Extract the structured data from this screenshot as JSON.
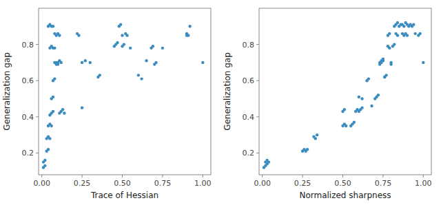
{
  "chart_data": [
    {
      "type": "scatter",
      "x_label": "Trace of Hessian",
      "y_label": "Generalization gap",
      "xlim": [
        -0.02,
        1.05
      ],
      "ylim": [
        0.08,
        1.0
      ],
      "xticks": [
        {
          "value": 0.0,
          "label": "0.00"
        },
        0.25,
        {
          "value": 0.5,
          "label": "0.50"
        },
        0.75,
        {
          "value": 1.0,
          "label": "1.00"
        }
      ],
      "yticks": [
        0.2,
        0.4,
        0.6,
        0.8
      ],
      "color": "#3a8bbf",
      "x": [
        0.01,
        0.02,
        0.01,
        0.02,
        0.03,
        0.04,
        0.03,
        0.04,
        0.05,
        0.04,
        0.05,
        0.06,
        0.05,
        0.06,
        0.07,
        0.06,
        0.07,
        0.07,
        0.08,
        0.08,
        0.09,
        0.09,
        0.1,
        0.1,
        0.11,
        0.12,
        0.11,
        0.12,
        0.13,
        0.14,
        0.04,
        0.05,
        0.06,
        0.07,
        0.08,
        0.09,
        0.1,
        0.11,
        0.05,
        0.06,
        0.07,
        0.08,
        0.25,
        0.27,
        0.3,
        0.25,
        0.35,
        0.36,
        0.45,
        0.46,
        0.47,
        0.5,
        0.5,
        0.51,
        0.55,
        0.6,
        0.62,
        0.65,
        0.7,
        0.71,
        0.75,
        0.9,
        0.92,
        1.0,
        0.22,
        0.23,
        0.48,
        0.49,
        0.52,
        0.53,
        0.68,
        0.69,
        0.9,
        0.91
      ],
      "y": [
        0.12,
        0.13,
        0.15,
        0.16,
        0.21,
        0.22,
        0.28,
        0.29,
        0.28,
        0.35,
        0.36,
        0.35,
        0.41,
        0.42,
        0.43,
        0.5,
        0.51,
        0.6,
        0.61,
        0.7,
        0.69,
        0.7,
        0.69,
        0.7,
        0.71,
        0.7,
        0.42,
        0.43,
        0.44,
        0.42,
        0.9,
        0.91,
        0.9,
        0.9,
        0.86,
        0.85,
        0.86,
        0.85,
        0.78,
        0.79,
        0.78,
        0.78,
        0.7,
        0.71,
        0.7,
        0.45,
        0.62,
        0.63,
        0.79,
        0.8,
        0.81,
        0.85,
        0.79,
        0.8,
        0.78,
        0.63,
        0.61,
        0.71,
        0.69,
        0.7,
        0.78,
        0.85,
        0.9,
        0.7,
        0.86,
        0.85,
        0.9,
        0.91,
        0.86,
        0.85,
        0.78,
        0.79,
        0.86,
        0.85
      ]
    },
    {
      "type": "scatter",
      "x_label": "Normalized sharpness",
      "y_label": "Generalization gap",
      "xlim": [
        -0.02,
        1.05
      ],
      "ylim": [
        0.08,
        1.0
      ],
      "xticks": [
        {
          "value": 0.0,
          "label": "0.00"
        },
        0.25,
        {
          "value": 0.5,
          "label": "0.50"
        },
        0.75,
        {
          "value": 1.0,
          "label": "1.00"
        }
      ],
      "yticks": [
        0.2,
        0.4,
        0.6,
        0.8
      ],
      "color": "#3a8bbf",
      "x": [
        0.01,
        0.02,
        0.02,
        0.03,
        0.03,
        0.04,
        0.25,
        0.26,
        0.27,
        0.28,
        0.32,
        0.33,
        0.34,
        0.5,
        0.51,
        0.52,
        0.5,
        0.51,
        0.55,
        0.56,
        0.57,
        0.58,
        0.59,
        0.6,
        0.61,
        0.62,
        0.6,
        0.62,
        0.65,
        0.66,
        0.68,
        0.7,
        0.71,
        0.72,
        0.73,
        0.74,
        0.75,
        0.76,
        0.73,
        0.74,
        0.75,
        0.76,
        0.77,
        0.78,
        0.79,
        0.8,
        0.78,
        0.79,
        0.8,
        0.81,
        0.82,
        0.83,
        0.84,
        0.82,
        0.83,
        0.84,
        0.85,
        0.86,
        0.87,
        0.88,
        0.89,
        0.9,
        0.87,
        0.88,
        0.89,
        0.9,
        0.91,
        0.92,
        0.93,
        0.94,
        0.95,
        0.97,
        0.98,
        1.0
      ],
      "y": [
        0.12,
        0.13,
        0.15,
        0.14,
        0.16,
        0.15,
        0.21,
        0.22,
        0.21,
        0.22,
        0.29,
        0.28,
        0.3,
        0.35,
        0.36,
        0.35,
        0.43,
        0.44,
        0.35,
        0.36,
        0.37,
        0.43,
        0.44,
        0.43,
        0.44,
        0.45,
        0.51,
        0.5,
        0.6,
        0.61,
        0.46,
        0.5,
        0.51,
        0.52,
        0.7,
        0.71,
        0.72,
        0.62,
        0.69,
        0.7,
        0.71,
        0.62,
        0.63,
        0.79,
        0.78,
        0.69,
        0.85,
        0.86,
        0.7,
        0.79,
        0.8,
        0.86,
        0.85,
        0.9,
        0.91,
        0.92,
        0.9,
        0.91,
        0.86,
        0.85,
        0.86,
        0.85,
        0.91,
        0.9,
        0.92,
        0.91,
        0.9,
        0.91,
        0.9,
        0.91,
        0.86,
        0.85,
        0.86,
        0.7
      ]
    }
  ]
}
